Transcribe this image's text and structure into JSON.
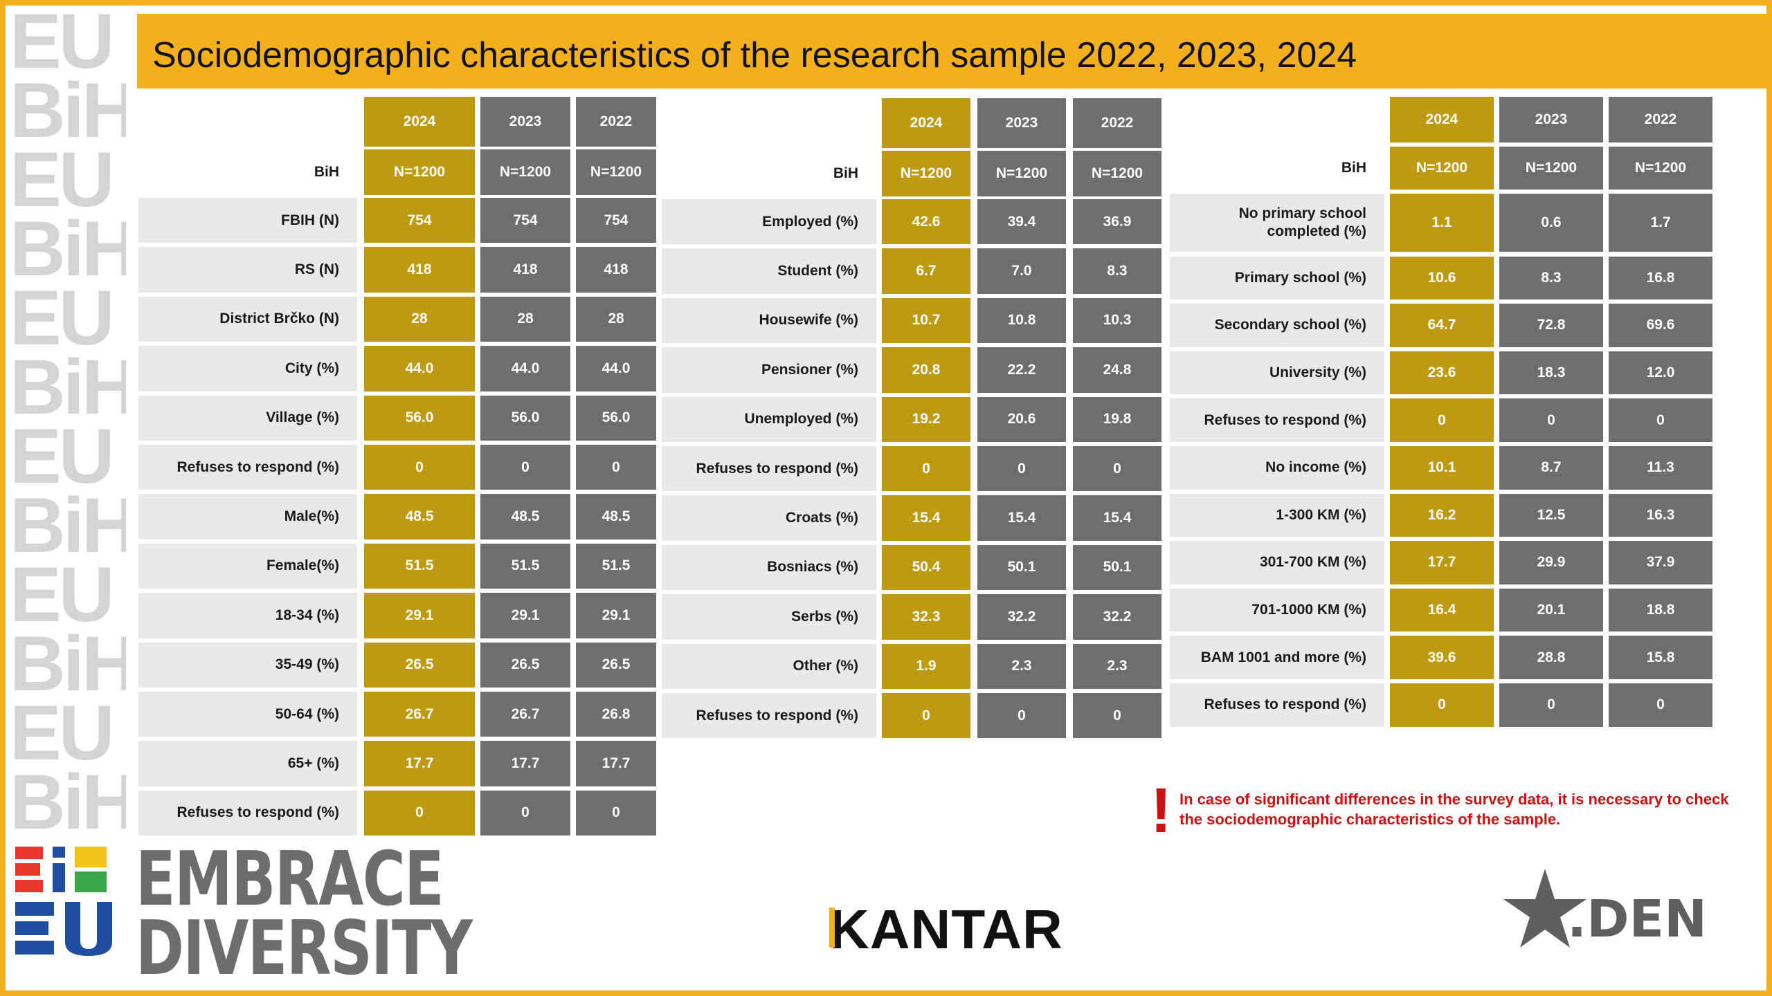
{
  "title": "Sociodemographic characteristics of the research sample 2022, 2023, 2024",
  "years": [
    "2024",
    "2023",
    "2022"
  ],
  "tables": [
    {
      "head_label": "BiH",
      "n": [
        "N=1200",
        "N=1200",
        "N=1200"
      ],
      "rows": [
        {
          "label": "FBIH (N)",
          "values": [
            "754",
            "754",
            "754"
          ]
        },
        {
          "label": "RS (N)",
          "values": [
            "418",
            "418",
            "418"
          ]
        },
        {
          "label": "District Brčko (N)",
          "values": [
            "28",
            "28",
            "28"
          ]
        },
        {
          "label": "City (%)",
          "values": [
            "44.0",
            "44.0",
            "44.0"
          ]
        },
        {
          "label": "Village (%)",
          "values": [
            "56.0",
            "56.0",
            "56.0"
          ]
        },
        {
          "label": "Refuses to respond (%)",
          "values": [
            "0",
            "0",
            "0"
          ]
        },
        {
          "label": "Male(%)",
          "values": [
            "48.5",
            "48.5",
            "48.5"
          ]
        },
        {
          "label": "Female(%)",
          "values": [
            "51.5",
            "51.5",
            "51.5"
          ]
        },
        {
          "label": "18-34 (%)",
          "values": [
            "29.1",
            "29.1",
            "29.1"
          ]
        },
        {
          "label": "35-49 (%)",
          "values": [
            "26.5",
            "26.5",
            "26.5"
          ]
        },
        {
          "label": "50-64 (%)",
          "values": [
            "26.7",
            "26.7",
            "26.8"
          ]
        },
        {
          "label": "65+ (%)",
          "values": [
            "17.7",
            "17.7",
            "17.7"
          ]
        },
        {
          "label": "Refuses to respond (%)",
          "values": [
            "0",
            "0",
            "0"
          ]
        }
      ]
    },
    {
      "head_label": "BiH",
      "n": [
        "N=1200",
        "N=1200",
        "N=1200"
      ],
      "rows": [
        {
          "label": "Employed (%)",
          "values": [
            "42.6",
            "39.4",
            "36.9"
          ]
        },
        {
          "label": "Student (%)",
          "values": [
            "6.7",
            "7.0",
            "8.3"
          ]
        },
        {
          "label": "Housewife (%)",
          "values": [
            "10.7",
            "10.8",
            "10.3"
          ]
        },
        {
          "label": "Pensioner (%)",
          "values": [
            "20.8",
            "22.2",
            "24.8"
          ]
        },
        {
          "label": "Unemployed (%)",
          "values": [
            "19.2",
            "20.6",
            "19.8"
          ]
        },
        {
          "label": "Refuses to respond (%)",
          "values": [
            "0",
            "0",
            "0"
          ]
        },
        {
          "label": "Croats (%)",
          "values": [
            "15.4",
            "15.4",
            "15.4"
          ]
        },
        {
          "label": "Bosniacs (%)",
          "values": [
            "50.4",
            "50.1",
            "50.1"
          ]
        },
        {
          "label": "Serbs (%)",
          "values": [
            "32.3",
            "32.2",
            "32.2"
          ]
        },
        {
          "label": "Other (%)",
          "values": [
            "1.9",
            "2.3",
            "2.3"
          ]
        },
        {
          "label": "Refuses to respond (%)",
          "values": [
            "0",
            "0",
            "0"
          ]
        }
      ]
    },
    {
      "head_label": "BiH",
      "n": [
        "N=1200",
        "N=1200",
        "N=1200"
      ],
      "rows": [
        {
          "label": "No primary school completed (%)",
          "values": [
            "1.1",
            "0.6",
            "1.7"
          ]
        },
        {
          "label": "Primary school (%)",
          "values": [
            "10.6",
            "8.3",
            "16.8"
          ]
        },
        {
          "label": "Secondary school (%)",
          "values": [
            "64.7",
            "72.8",
            "69.6"
          ]
        },
        {
          "label": "University (%)",
          "values": [
            "23.6",
            "18.3",
            "12.0"
          ]
        },
        {
          "label": "Refuses to respond (%)",
          "values": [
            "0",
            "0",
            "0"
          ]
        },
        {
          "label": "No income (%)",
          "values": [
            "10.1",
            "8.7",
            "11.3"
          ]
        },
        {
          "label": "1-300 KM (%)",
          "values": [
            "16.2",
            "12.5",
            "16.3"
          ]
        },
        {
          "label": "301-700 KM (%)",
          "values": [
            "17.7",
            "29.9",
            "37.9"
          ]
        },
        {
          "label": "701-1000 KM (%)",
          "values": [
            "16.4",
            "20.1",
            "18.8"
          ]
        },
        {
          "label": "BAM 1001 and more (%)",
          "values": [
            "39.6",
            "28.8",
            "15.8"
          ]
        },
        {
          "label": "Refuses to respond (%)",
          "values": [
            "0",
            "0",
            "0"
          ]
        }
      ]
    }
  ],
  "note": {
    "mark": "!",
    "text": "In case of significant differences in the survey data, it is necessary to check the sociodemographic characteristics of the sample."
  },
  "logos": {
    "embrace_line1": "EMBRACE",
    "embrace_line2": "DIVERSITY",
    "kantar": "KANTAR",
    "den": ".DEN",
    "bieu": "BiH EU",
    "strip_a": "EU",
    "strip_b": "BiH"
  },
  "colors": {
    "accent_yellow": "#f3b01c",
    "cell_2024": "#bd9a0f",
    "cell_other": "#6e6e6e",
    "label_bg": "#e9e9e9",
    "note_red": "#cc1111"
  }
}
